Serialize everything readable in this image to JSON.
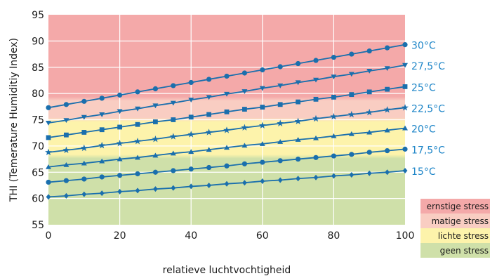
{
  "chart_data": {
    "type": "line",
    "title": "",
    "xlabel": "relatieve luchtvochtigheid",
    "ylabel": "THI (Temerature Humiditiy Index)",
    "xlim": [
      0,
      100
    ],
    "ylim": [
      55,
      95
    ],
    "xticks": [
      0,
      20,
      40,
      60,
      80,
      100
    ],
    "yticks": [
      55,
      60,
      65,
      70,
      75,
      80,
      85,
      90,
      95
    ],
    "grid": true,
    "line_color": "#1a6fad",
    "label_color": "#1f86c8",
    "x": [
      0,
      5,
      10,
      15,
      20,
      25,
      30,
      35,
      40,
      45,
      50,
      55,
      60,
      65,
      70,
      75,
      80,
      85,
      90,
      95,
      100
    ],
    "series": [
      {
        "name": "30°C",
        "marker": "circle",
        "values": [
          77.3,
          77.9,
          78.5,
          79.1,
          79.7,
          80.3,
          80.9,
          81.5,
          82.1,
          82.7,
          83.3,
          83.9,
          84.5,
          85.1,
          85.7,
          86.3,
          86.9,
          87.5,
          88.1,
          88.7,
          89.3
        ]
      },
      {
        "name": "27,5°C",
        "marker": "triangle-down",
        "values": [
          74.4,
          74.9,
          75.5,
          76.0,
          76.6,
          77.1,
          77.7,
          78.2,
          78.8,
          79.3,
          79.9,
          80.4,
          81.0,
          81.5,
          82.1,
          82.6,
          83.2,
          83.7,
          84.3,
          84.8,
          85.4
        ]
      },
      {
        "name": "25°C",
        "marker": "square",
        "values": [
          71.6,
          72.1,
          72.6,
          73.1,
          73.6,
          74.1,
          74.6,
          75.0,
          75.5,
          76.0,
          76.5,
          77.0,
          77.4,
          77.9,
          78.4,
          78.9,
          79.3,
          79.8,
          80.3,
          80.8,
          81.3
        ]
      },
      {
        "name": "22,5°C",
        "marker": "star",
        "values": [
          68.8,
          69.2,
          69.6,
          70.1,
          70.5,
          70.9,
          71.3,
          71.8,
          72.2,
          72.6,
          73.0,
          73.5,
          73.9,
          74.3,
          74.7,
          75.2,
          75.6,
          76.0,
          76.4,
          76.9,
          77.3
        ]
      },
      {
        "name": "20°C",
        "marker": "triangle-up",
        "values": [
          66.0,
          66.4,
          66.7,
          67.1,
          67.5,
          67.8,
          68.2,
          68.6,
          68.9,
          69.3,
          69.7,
          70.1,
          70.4,
          70.8,
          71.2,
          71.5,
          71.9,
          72.3,
          72.6,
          73.0,
          73.4
        ]
      },
      {
        "name": "17,5°C",
        "marker": "circle",
        "values": [
          63.1,
          63.4,
          63.7,
          64.1,
          64.4,
          64.7,
          65.0,
          65.3,
          65.6,
          65.9,
          66.2,
          66.6,
          66.9,
          67.2,
          67.5,
          67.8,
          68.1,
          68.4,
          68.8,
          69.1,
          69.4
        ]
      },
      {
        "name": "15°C",
        "marker": "diamond",
        "values": [
          60.3,
          60.5,
          60.8,
          61.0,
          61.3,
          61.5,
          61.8,
          62.0,
          62.3,
          62.5,
          62.8,
          63.0,
          63.3,
          63.5,
          63.8,
          64.0,
          64.3,
          64.5,
          64.8,
          65.0,
          65.3
        ]
      }
    ],
    "zones": [
      {
        "name": "ernstige stress",
        "from": 79,
        "to": 95,
        "color": "#f4a9a9"
      },
      {
        "name": "matige stress",
        "from": 75,
        "to": 79,
        "color": "#f9cdc2"
      },
      {
        "name": "lichte stress",
        "from": 68,
        "to": 75,
        "color": "#fdf3ab"
      },
      {
        "name": "geen stress",
        "from": 55,
        "to": 68,
        "color": "#cfe0a9"
      }
    ],
    "legend": {
      "position": "bottom-right",
      "items": [
        "ernstige stress",
        "matige stress",
        "lichte stress",
        "geen stress"
      ]
    }
  }
}
